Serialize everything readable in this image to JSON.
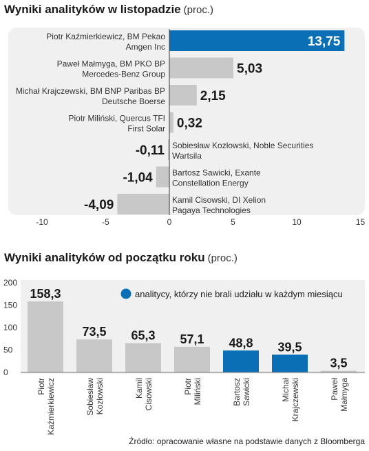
{
  "chart_data": [
    {
      "type": "bar",
      "orientation": "horizontal",
      "title": "Wyniki analityków w listopadzie",
      "unit": "(proc.)",
      "categories": [
        [
          "Piotr Kaźmierkiewicz, BM Pekao",
          "Amgen Inc"
        ],
        [
          "Paweł Małmyga, BM PKO BP",
          "Mercedes-Benz Group"
        ],
        [
          "Michał Krajczewski, BM BNP Paribas BP",
          "Deutsche Boerse"
        ],
        [
          "Piotr Miliński, Quercus TFI",
          "First Solar"
        ],
        [
          "Sobiesław Kozłowski, Noble Securities",
          "Wartsila"
        ],
        [
          "Bartosz Sawicki, Exante",
          "Constellation Energy"
        ],
        [
          "Kamil Cisowski, DI Xelion",
          "Pagaya Technologies"
        ]
      ],
      "values": [
        13.75,
        5.03,
        2.15,
        0.32,
        -0.11,
        -1.04,
        -4.09
      ],
      "value_labels": [
        "13,75",
        "5,03",
        "2,15",
        "0,32",
        "-0,11",
        "-1,04",
        "-4,09"
      ],
      "highlight_index": 0,
      "xlim": [
        -10,
        15
      ],
      "xticks": [
        -10,
        -5,
        0,
        5,
        10,
        15
      ],
      "grid": false
    },
    {
      "type": "bar",
      "title": "Wyniki analityków od początku roku",
      "unit": "(proc.)",
      "categories": [
        [
          "Piotr",
          "Kaźmierkiewicz"
        ],
        [
          "Sobiesław",
          "Kozłowski"
        ],
        [
          "Kamil",
          "Cisowski"
        ],
        [
          "Piotr",
          "Miliński"
        ],
        [
          "Bartosz",
          "Sawicki"
        ],
        [
          "Michał",
          "Krajczewski"
        ],
        [
          "Paweł",
          "Małmyga"
        ]
      ],
      "values": [
        158.3,
        73.5,
        65.3,
        57.1,
        48.8,
        39.5,
        3.5
      ],
      "value_labels": [
        "158,3",
        "73,5",
        "65,3",
        "57,1",
        "48,8",
        "39,5",
        "3,5"
      ],
      "highlighted": [
        false,
        false,
        false,
        false,
        true,
        true,
        false
      ],
      "ylim": [
        0,
        200
      ],
      "yticks": [
        0,
        50,
        100,
        150,
        200
      ],
      "legend": "analitycy, którzy nie brali udziału w każdym miesiącu",
      "legend_position": "top-right"
    }
  ],
  "colors": {
    "blue": "#0b6fb6",
    "gray": "#c8c8c8",
    "panel": "#f0f0f0",
    "text": "#1a1a1a"
  },
  "source": "Źródło: opracowanie własne na podstawie danych z Bloomberga"
}
